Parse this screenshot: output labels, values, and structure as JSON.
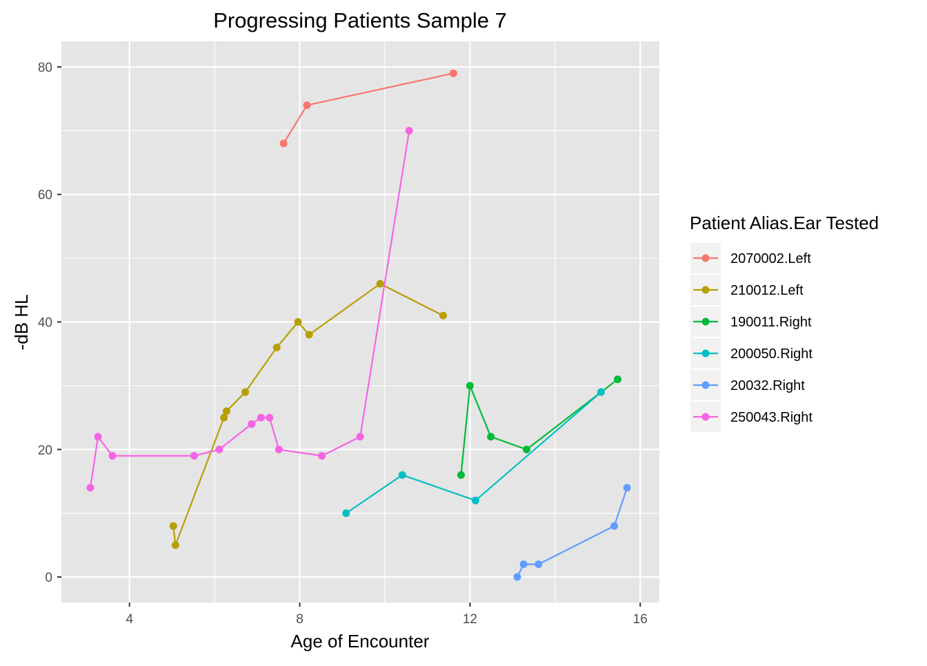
{
  "chart_data": {
    "type": "line",
    "title": "Progressing Patients Sample 7",
    "xlabel": "Age of Encounter",
    "ylabel": "-dB HL",
    "xlim": [
      2.4,
      16.45
    ],
    "ylim": [
      84,
      -4
    ],
    "y_reversed": true,
    "x_ticks": [
      4,
      8,
      12,
      16
    ],
    "x_tick_labels": [
      "4",
      "8",
      "12",
      "16"
    ],
    "y_ticks": [
      0,
      20,
      40,
      60,
      80
    ],
    "y_tick_labels": [
      "0",
      "20",
      "40",
      "60",
      "80"
    ],
    "grid": true,
    "background": "#e5e5e5",
    "legend": {
      "title": "Patient Alias.Ear Tested",
      "position": "right"
    },
    "series": [
      {
        "name": "2070002.Left",
        "color": "#f8766d",
        "points": [
          [
            7.62,
            68
          ],
          [
            8.17,
            74
          ],
          [
            11.61,
            79
          ]
        ]
      },
      {
        "name": "210012.Left",
        "color": "#b79f00",
        "points": [
          [
            5.03,
            8
          ],
          [
            5.08,
            5
          ],
          [
            6.22,
            25
          ],
          [
            6.28,
            26
          ],
          [
            6.72,
            29
          ],
          [
            7.46,
            36
          ],
          [
            7.96,
            40
          ],
          [
            8.22,
            38
          ],
          [
            9.89,
            46
          ],
          [
            11.37,
            41
          ]
        ]
      },
      {
        "name": "190011.Right",
        "color": "#00ba38",
        "points": [
          [
            11.79,
            16
          ],
          [
            12.0,
            30
          ],
          [
            12.49,
            22
          ],
          [
            13.33,
            20
          ],
          [
            15.47,
            31
          ]
        ]
      },
      {
        "name": "200050.Right",
        "color": "#00bfc4",
        "points": [
          [
            9.09,
            10
          ],
          [
            10.41,
            16
          ],
          [
            12.13,
            12
          ],
          [
            15.08,
            29
          ]
        ]
      },
      {
        "name": "20032.Right",
        "color": "#619cff",
        "points": [
          [
            13.11,
            0
          ],
          [
            13.26,
            2
          ],
          [
            13.61,
            2
          ],
          [
            15.39,
            8
          ],
          [
            15.69,
            14
          ]
        ]
      },
      {
        "name": "250043.Right",
        "color": "#f564e3",
        "points": [
          [
            3.08,
            14
          ],
          [
            3.26,
            22
          ],
          [
            3.6,
            19
          ],
          [
            5.52,
            19
          ],
          [
            6.11,
            20
          ],
          [
            6.87,
            24
          ],
          [
            7.09,
            25
          ],
          [
            7.29,
            25
          ],
          [
            7.51,
            20
          ],
          [
            8.52,
            19
          ],
          [
            9.42,
            22
          ],
          [
            10.57,
            70
          ]
        ]
      }
    ]
  }
}
